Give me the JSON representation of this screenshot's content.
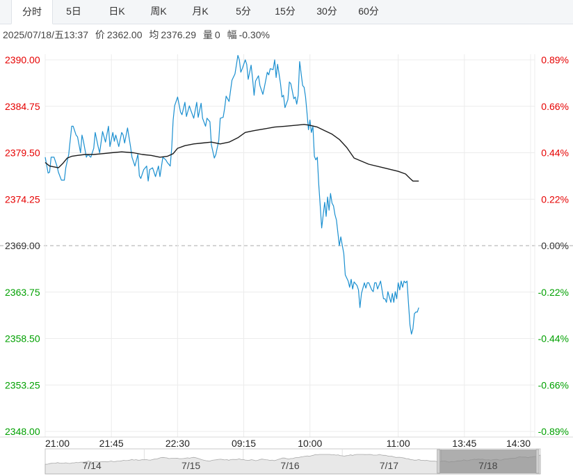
{
  "tabs": [
    {
      "label": "分时",
      "active": true
    },
    {
      "label": "5日",
      "active": false
    },
    {
      "label": "日K",
      "active": false
    },
    {
      "label": "周K",
      "active": false
    },
    {
      "label": "月K",
      "active": false
    },
    {
      "label": "5分",
      "active": false
    },
    {
      "label": "15分",
      "active": false
    },
    {
      "label": "30分",
      "active": false
    },
    {
      "label": "60分",
      "active": false
    }
  ],
  "info": {
    "datetime": "2025/07/18/五13:37",
    "price_label": "价",
    "price": "2362.00",
    "avg_label": "均",
    "avg": "2376.29",
    "volume_label": "量",
    "volume": "0",
    "change_label": "幅",
    "change": "-0.30%"
  },
  "colors": {
    "price_line": "#1a8fd0",
    "avg_line": "#1a1a1a",
    "up": "#e60000",
    "down": "#00a000",
    "neutral": "#333333",
    "grid": "#ececec",
    "preclose_line": "#aaaaaa"
  },
  "chart_data": {
    "type": "line",
    "title": "",
    "xlabel": "",
    "ylabel": "",
    "ylim": [
      2348.0,
      2390.0
    ],
    "pre_close": 2369.0,
    "y_ticks_left": [
      "2390.00",
      "2384.75",
      "2379.50",
      "2374.25",
      "2369.00",
      "2363.75",
      "2358.50",
      "2353.25",
      "2348.00"
    ],
    "y_ticks_right": [
      "0.89%",
      "0.66%",
      "0.44%",
      "0.22%",
      "0.00%",
      "-0.22%",
      "-0.44%",
      "-0.66%",
      "-0.89%"
    ],
    "x_ticks": [
      "21:00",
      "21:45",
      "22:30",
      "09:15",
      "10:00",
      "11:00",
      "13:45",
      "14:30"
    ],
    "x_tick_minutes": [
      0,
      45,
      90,
      135,
      180,
      240,
      285,
      330
    ],
    "x_range_minutes": [
      0,
      330
    ],
    "session_breaks": [
      "22:30",
      "10:00",
      "11:00",
      "13:45"
    ],
    "grid": true,
    "series": [
      {
        "role": "price",
        "x": [
          0,
          2,
          3,
          4,
          6,
          8,
          9,
          11,
          13,
          14,
          16,
          18,
          19,
          21,
          22,
          24,
          25,
          26,
          28,
          29,
          31,
          33,
          34,
          36,
          37,
          39,
          41,
          43,
          44,
          46,
          47,
          48,
          50,
          52,
          53,
          54,
          56,
          58,
          59,
          61,
          63,
          64,
          65,
          67,
          69,
          70,
          71,
          73,
          75,
          77,
          78,
          80,
          82,
          83,
          85,
          86,
          87,
          88,
          90,
          92,
          93,
          95,
          96,
          98,
          99,
          101,
          103,
          104,
          106,
          107,
          109,
          110,
          112,
          113,
          115,
          116,
          118,
          119,
          121,
          122,
          123,
          125,
          126,
          127,
          129,
          131,
          132,
          133,
          134,
          136,
          137,
          138,
          140,
          141,
          142,
          143,
          145,
          146,
          148,
          149,
          151,
          152,
          153,
          155,
          156,
          157,
          158,
          160,
          161,
          162,
          163,
          165,
          166,
          167,
          168,
          169,
          170,
          171,
          172,
          173,
          175,
          176,
          177,
          178,
          179,
          180,
          181,
          182,
          183,
          184,
          185,
          186,
          187,
          188,
          190,
          191,
          192,
          193,
          194,
          195,
          196,
          197,
          198,
          200,
          201,
          202,
          203,
          204,
          206,
          207,
          208,
          209,
          210,
          212,
          213,
          214,
          215,
          217,
          218,
          219,
          220,
          222,
          223,
          224,
          225,
          226,
          228,
          229,
          230,
          231,
          232,
          233,
          234,
          235,
          236,
          237,
          238,
          239,
          240,
          241,
          242,
          243,
          244,
          245,
          246,
          247,
          248,
          249,
          250,
          251,
          252,
          253,
          254
        ],
        "values": [
          2379.0,
          2377.2,
          2377.3,
          2379.0,
          2379.0,
          2378.0,
          2377.3,
          2376.4,
          2376.4,
          2377.8,
          2379.3,
          2382.5,
          2382.5,
          2381.5,
          2381.3,
          2379.5,
          2381.5,
          2380.8,
          2379.0,
          2379.3,
          2379.0,
          2380.0,
          2381.8,
          2380.2,
          2379.5,
          2381.9,
          2380.7,
          2382.5,
          2380.2,
          2381.8,
          2380.8,
          2381.5,
          2380.2,
          2381.8,
          2381.5,
          2380.6,
          2382.3,
          2380.2,
          2379.0,
          2378.0,
          2379.3,
          2376.9,
          2376.6,
          2377.6,
          2378.0,
          2376.3,
          2377.6,
          2377.8,
          2376.8,
          2378.0,
          2376.8,
          2379.0,
          2378.7,
          2378.4,
          2378.0,
          2380.0,
          2383.2,
          2384.8,
          2385.8,
          2384.1,
          2383.8,
          2385.2,
          2383.6,
          2384.8,
          2384.3,
          2383.4,
          2385.2,
          2383.5,
          2385.1,
          2383.4,
          2382.5,
          2383.4,
          2383.0,
          2380.4,
          2378.9,
          2379.3,
          2380.9,
          2383.4,
          2383.5,
          2384.5,
          2385.9,
          2385.3,
          2386.5,
          2387.7,
          2388.4,
          2390.5,
          2390.0,
          2388.6,
          2389.0,
          2390.0,
          2389.5,
          2387.8,
          2389.4,
          2387.9,
          2386.0,
          2387.6,
          2388.2,
          2387.1,
          2386.1,
          2386.9,
          2388.6,
          2388.3,
          2389.0,
          2388.9,
          2390.0,
          2388.0,
          2389.5,
          2387.3,
          2385.8,
          2386.0,
          2384.6,
          2385.5,
          2387.5,
          2387.3,
          2386.5,
          2385.6,
          2385.8,
          2385.0,
          2386.0,
          2389.8,
          2387.1,
          2386.9,
          2385.8,
          2384.0,
          2382.1,
          2383.2,
          2381.8,
          2382.5,
          2379.1,
          2378.7,
          2379.0,
          2375.9,
          2373.5,
          2371.0,
          2373.9,
          2372.3,
          2374.5,
          2373.0,
          2374.9,
          2373.8,
          2373.5,
          2372.5,
          2371.9,
          2369.0,
          2370.0,
          2369.0,
          2368.1,
          2365.7,
          2365.0,
          2364.3,
          2365.2,
          2364.1,
          2364.9,
          2364.5,
          2364.0,
          2362.0,
          2363.6,
          2364.8,
          2364.2,
          2364.8,
          2364.8,
          2364.0,
          2363.8,
          2364.8,
          2364.8,
          2364.1,
          2365.0,
          2364.0,
          2363.0,
          2363.0,
          2362.6,
          2363.8,
          2363.2,
          2362.6,
          2363.6,
          2362.6,
          2363.8,
          2363.0,
          2364.8,
          2364.0,
          2365.0,
          2364.3,
          2365.0,
          2364.8,
          2365.0,
          2362.5,
          2360.0,
          2359.0,
          2359.6,
          2361.3,
          2361.5,
          2361.5,
          2362.0
        ]
      },
      {
        "role": "average",
        "x": [
          0,
          3,
          6,
          9,
          12,
          15,
          18,
          22,
          27,
          33,
          39,
          45,
          52,
          60,
          66,
          72,
          78,
          83,
          87,
          90,
          95,
          101,
          107,
          113,
          119,
          125,
          131,
          136,
          142,
          149,
          156,
          163,
          170,
          176,
          180,
          185,
          190,
          195,
          200,
          205,
          210,
          220,
          230,
          240,
          245,
          248,
          250,
          254
        ],
        "values": [
          2378.4,
          2378.0,
          2377.9,
          2377.8,
          2378.3,
          2378.9,
          2379.1,
          2379.2,
          2379.3,
          2379.3,
          2379.4,
          2379.5,
          2379.6,
          2379.5,
          2379.3,
          2379.2,
          2379.0,
          2379.1,
          2379.4,
          2380.0,
          2380.3,
          2380.5,
          2380.6,
          2380.7,
          2380.5,
          2380.7,
          2381.2,
          2381.8,
          2382.0,
          2382.2,
          2382.4,
          2382.5,
          2382.6,
          2382.7,
          2382.6,
          2382.4,
          2382.0,
          2381.6,
          2381.0,
          2380.1,
          2378.9,
          2378.2,
          2377.8,
          2377.4,
          2377.1,
          2376.6,
          2376.3,
          2376.3
        ]
      }
    ]
  },
  "overview": {
    "labels": [
      "7/14",
      "7/15",
      "7/16",
      "7/17",
      "7/18"
    ]
  }
}
